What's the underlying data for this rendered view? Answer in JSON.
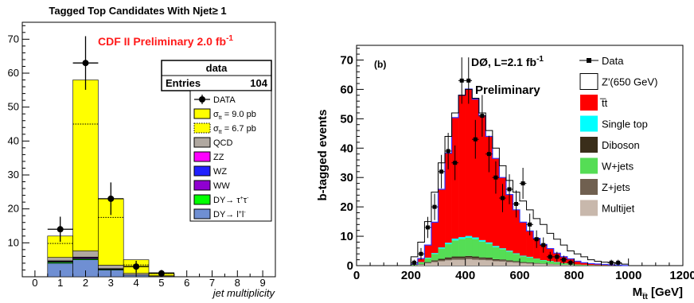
{
  "chart_data": [
    {
      "type": "bar",
      "title": "Tagged Top Candidates With Njet≥ 1",
      "annotation_main": "CDF II Preliminary 2.0 fb",
      "annotation_sup": "-1",
      "xlabel": "jet multiplicity",
      "ylabel": "",
      "xlim": [
        -0.5,
        9.5
      ],
      "ylim": [
        0,
        75
      ],
      "xticks": [
        "0",
        "1",
        "2",
        "3",
        "4",
        "5",
        "6",
        "7",
        "8",
        "9"
      ],
      "yticks": [
        "10",
        "20",
        "30",
        "40",
        "50",
        "60",
        "70"
      ],
      "stats_box": {
        "title": "data",
        "entries_label": "Entries",
        "entries_value": "104"
      },
      "bins": [
        1,
        2,
        3,
        4,
        5
      ],
      "stacked_series": [
        {
          "name": "DY→ l⁺l⁻",
          "color": "#6f8fd3",
          "values": [
            4.0,
            5.0,
            2.0,
            0.5,
            0.1
          ]
        },
        {
          "name": "DY→ τ⁺τ⁻",
          "color": "#00ff00",
          "values": [
            0.3,
            0.3,
            0.2,
            0.0,
            0.0
          ]
        },
        {
          "name": "WW",
          "color": "#9000d0",
          "values": [
            0.2,
            0.3,
            0.1,
            0.0,
            0.0
          ]
        },
        {
          "name": "WZ",
          "color": "#2020ff",
          "values": [
            0.1,
            0.1,
            0.1,
            0.0,
            0.0
          ]
        },
        {
          "name": "ZZ",
          "color": "#ff00ff",
          "values": [
            0.1,
            0.1,
            0.0,
            0.0,
            0.0
          ]
        },
        {
          "name": "QCD",
          "color": "#b0a8a0",
          "values": [
            1.0,
            1.8,
            1.0,
            0.5,
            0.2
          ]
        },
        {
          "name": "σ_tt = 9.0 pb",
          "color": "#ffff00",
          "values": [
            6.3,
            50.4,
            19.6,
            4.0,
            0.9
          ]
        }
      ],
      "dotted_series": {
        "name": "σ_tt = 6.7 pb",
        "values": [
          9.8,
          45.0,
          17.5,
          3.5,
          1.0
        ]
      },
      "data_series": {
        "name": "DATA",
        "x": [
          1,
          2,
          3,
          4,
          5
        ],
        "y": [
          14,
          63,
          23,
          3,
          1
        ],
        "err": [
          3.7,
          7.9,
          4.8,
          1.7,
          1.0
        ]
      },
      "legend": [
        {
          "label": "DATA",
          "style": "marker"
        },
        {
          "label": "σ",
          "sub": "tt",
          "rest": " = 9.0 pb",
          "color": "#ffff00"
        },
        {
          "label": "σ",
          "sub": "tt",
          "rest": " = 6.7 pb",
          "color": "#ffff00",
          "dotted": true
        },
        {
          "label": "QCD",
          "color": "#b0a8a0"
        },
        {
          "label": "ZZ",
          "color": "#ff00ff"
        },
        {
          "label": "WZ",
          "color": "#2020ff"
        },
        {
          "label": "WW",
          "color": "#9000d0"
        },
        {
          "label": "DY→ τ",
          "sup1": "+",
          "label2": "τ",
          "sup2": "-",
          "color": "#00ff00"
        },
        {
          "label": "DY→ l",
          "sup1": "+",
          "label2": "l",
          "sup2": "-",
          "color": "#6f8fd3"
        }
      ]
    },
    {
      "type": "bar",
      "title": "",
      "panel_label": "(b)",
      "annotation_main": "DØ,  L=2.1 fb",
      "annotation_sup": "-1",
      "annotation_sub": "Preliminary",
      "xlabel_main": "M",
      "xlabel_sub": "t̅t",
      "xlabel_rest": " [GeV]",
      "ylabel": "b-tagged events",
      "xlim": [
        0,
        1200
      ],
      "ylim": [
        0,
        75
      ],
      "xticks": [
        "0",
        "200",
        "400",
        "600",
        "800",
        "1000",
        "1200"
      ],
      "yticks": [
        "0",
        "10",
        "20",
        "30",
        "40",
        "50",
        "60",
        "70"
      ],
      "bin_edges": [
        200,
        225,
        250,
        275,
        300,
        325,
        350,
        375,
        400,
        425,
        450,
        475,
        500,
        525,
        550,
        575,
        600,
        625,
        650,
        675,
        700,
        725,
        750,
        775,
        800,
        825,
        850,
        875,
        900,
        925,
        950,
        975,
        1000
      ],
      "stacked_series": [
        {
          "name": "Multijet",
          "color": "#c8b8ac",
          "values": [
            0.1,
            0.3,
            0.8,
            1.2,
            1.5,
            1.8,
            2.0,
            2.0,
            2.2,
            2.0,
            1.9,
            1.8,
            1.5,
            1.4,
            1.2,
            1.0,
            0.8,
            0.7,
            0.6,
            0.5,
            0.4,
            0.3,
            0.2,
            0.2,
            0.1,
            0.1,
            0.05,
            0.05,
            0.0,
            0.0,
            0.0,
            0.0
          ]
        },
        {
          "name": "Z+jets",
          "color": "#706050",
          "values": [
            0.0,
            0.1,
            0.2,
            0.3,
            0.4,
            0.5,
            0.6,
            0.6,
            0.6,
            0.6,
            0.5,
            0.5,
            0.4,
            0.4,
            0.3,
            0.3,
            0.2,
            0.2,
            0.2,
            0.1,
            0.1,
            0.1,
            0.05,
            0.05,
            0.0,
            0.0,
            0.0,
            0.0,
            0.0,
            0.0,
            0.0,
            0.0
          ]
        },
        {
          "name": "Diboson",
          "color": "#3a2e1a",
          "values": [
            0.0,
            0.1,
            0.2,
            0.3,
            0.4,
            0.5,
            0.5,
            0.5,
            0.5,
            0.5,
            0.4,
            0.4,
            0.3,
            0.3,
            0.3,
            0.2,
            0.2,
            0.2,
            0.1,
            0.1,
            0.1,
            0.05,
            0.05,
            0.0,
            0.0,
            0.0,
            0.0,
            0.0,
            0.0,
            0.0,
            0.0,
            0.0
          ]
        },
        {
          "name": "W+jets",
          "color": "#55dd55",
          "values": [
            0.2,
            0.6,
            1.3,
            2.2,
            3.5,
            4.5,
            5.5,
            6.0,
            6.2,
            6.0,
            5.4,
            4.8,
            4.1,
            3.5,
            3.0,
            2.5,
            2.0,
            1.7,
            1.4,
            1.1,
            0.9,
            0.7,
            0.5,
            0.4,
            0.3,
            0.2,
            0.15,
            0.1,
            0.1,
            0.05,
            0.05,
            0.0
          ]
        },
        {
          "name": "Single top",
          "color": "#00ffff",
          "values": [
            0.0,
            0.1,
            0.2,
            0.3,
            0.4,
            0.5,
            0.6,
            0.6,
            0.6,
            0.5,
            0.5,
            0.4,
            0.4,
            0.3,
            0.3,
            0.2,
            0.2,
            0.2,
            0.1,
            0.1,
            0.1,
            0.1,
            0.05,
            0.05,
            0.0,
            0.0,
            0.0,
            0.0,
            0.0,
            0.0,
            0.0,
            0.0
          ]
        },
        {
          "name": "t̅t",
          "color": "#ff0000",
          "values": [
            0.2,
            1.2,
            4.3,
            10.5,
            19.8,
            30.5,
            41.2,
            48.3,
            50.0,
            47.1,
            42.3,
            36.1,
            29.8,
            24.1,
            19.1,
            14.8,
            11.4,
            8.8,
            6.9,
            5.3,
            4.2,
            3.0,
            2.2,
            1.6,
            1.1,
            0.7,
            0.5,
            0.4,
            0.3,
            0.2,
            0.1,
            0.05
          ]
        }
      ],
      "zprime_series": {
        "name": "Z'(650 GeV)",
        "values": [
          3,
          8,
          15,
          25,
          35,
          44,
          52,
          58,
          60,
          57,
          52,
          46,
          40,
          34,
          29,
          25,
          22,
          19,
          16,
          14,
          11,
          9,
          7,
          5,
          4,
          3,
          2,
          1.5,
          1.2,
          1,
          0.8,
          0.5
        ]
      },
      "data_series": {
        "name": "Data",
        "x": [
          212,
          237,
          262,
          287,
          312,
          337,
          362,
          387,
          412,
          437,
          462,
          487,
          512,
          537,
          562,
          587,
          612,
          637,
          662,
          687,
          712,
          737,
          762,
          787,
          812,
          837,
          862,
          887,
          912,
          937,
          962,
          987
        ],
        "y": [
          1,
          4,
          13,
          20,
          32,
          39,
          35,
          63,
          63,
          43,
          51,
          38,
          30,
          23,
          26,
          21,
          28,
          14,
          9,
          7,
          3,
          3,
          2,
          1,
          0,
          0,
          0,
          0,
          0,
          1,
          1,
          0
        ],
        "err": [
          1,
          2,
          3.6,
          4.5,
          5.7,
          6.2,
          5.9,
          7.9,
          7.9,
          6.6,
          7.1,
          6.2,
          5.5,
          4.8,
          5.1,
          4.6,
          5.3,
          3.7,
          3,
          2.6,
          1.7,
          1.7,
          1.4,
          1,
          0,
          0,
          0,
          0,
          0,
          1,
          1,
          0
        ]
      },
      "legend": [
        {
          "label": "Data",
          "style": "marker"
        },
        {
          "label": "Z'(650 GeV)",
          "color": "#ffffff"
        },
        {
          "label": "t̅t",
          "color": "#ff0000"
        },
        {
          "label": "Single top",
          "color": "#00ffff"
        },
        {
          "label": "Diboson",
          "color": "#3a2e1a"
        },
        {
          "label": "W+jets",
          "color": "#55dd55"
        },
        {
          "label": "Z+jets",
          "color": "#706050"
        },
        {
          "label": "Multijet",
          "color": "#c8b8ac"
        }
      ]
    }
  ]
}
